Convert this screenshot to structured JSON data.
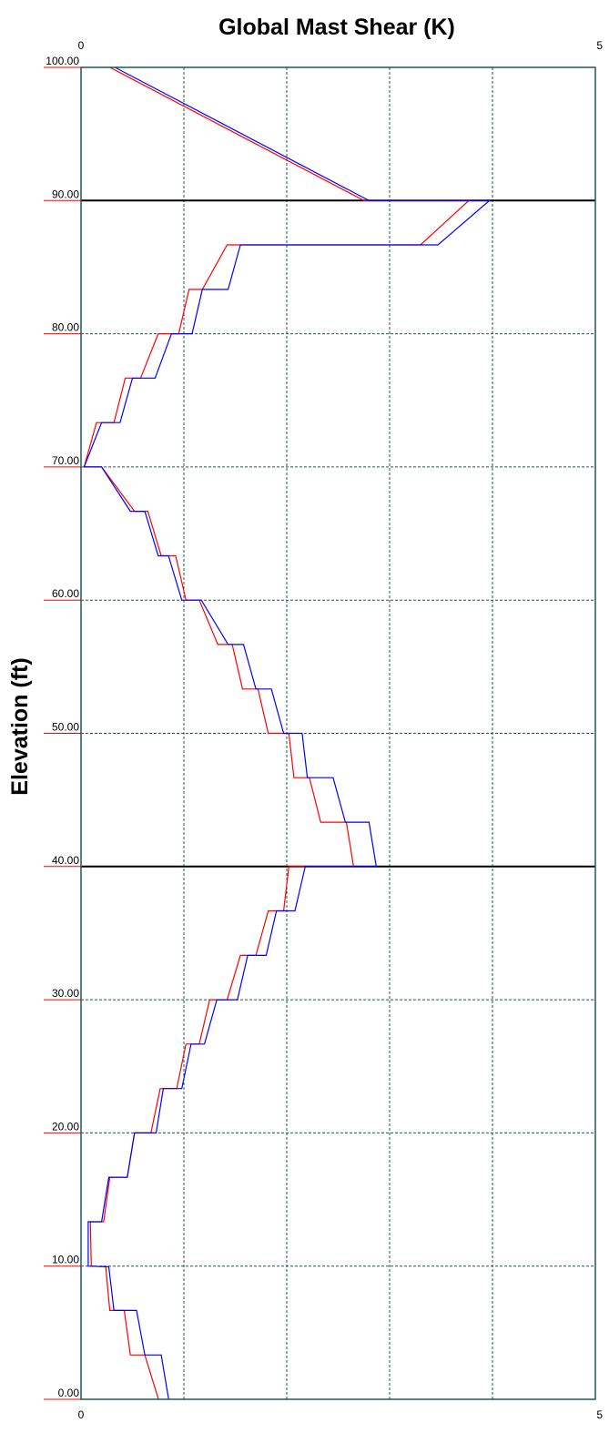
{
  "colors": {
    "frame": "#1f5a52",
    "grid": "#1f5a52",
    "series_red": "#ff0000",
    "series_blue": "#0000ff",
    "tick_marker": "#ff0000"
  },
  "chart_data": {
    "type": "line",
    "title": "Global Mast Shear (K)",
    "ylabel": "Elevation (ft)",
    "xlabel": "",
    "xlim": [
      0,
      5
    ],
    "ylim": [
      0,
      100
    ],
    "x_tick_labels": [
      "0",
      "5"
    ],
    "y_ticks": [
      0,
      10,
      20,
      30,
      40,
      50,
      60,
      70,
      80,
      90,
      100
    ],
    "y_tick_labels": [
      "0.00",
      "10.00",
      "20.00",
      "30.00",
      "40.00",
      "50.00",
      "60.00",
      "70.00",
      "80.00",
      "90.00",
      "100.00"
    ],
    "x_grid": [
      1,
      2,
      3,
      4
    ],
    "emphasized_y_lines": [
      40,
      90
    ],
    "grid": true,
    "series": [
      {
        "color": "red",
        "points": [
          [
            0.75,
            0
          ],
          [
            0.75,
            0.07
          ],
          [
            0.62,
            3.33
          ],
          [
            0.48,
            3.33
          ],
          [
            0.42,
            6.67
          ],
          [
            0.28,
            6.67
          ],
          [
            0.24,
            9.95
          ],
          [
            0.1,
            10.0
          ],
          [
            0.09,
            13.33
          ],
          [
            0.22,
            13.33
          ],
          [
            0.28,
            16.67
          ],
          [
            0.45,
            16.67
          ],
          [
            0.52,
            20.0
          ],
          [
            0.68,
            20.0
          ],
          [
            0.77,
            23.33
          ],
          [
            0.93,
            23.33
          ],
          [
            1.02,
            26.67
          ],
          [
            1.15,
            26.67
          ],
          [
            1.25,
            30.0
          ],
          [
            1.42,
            30.0
          ],
          [
            1.55,
            33.33
          ],
          [
            1.7,
            33.33
          ],
          [
            1.82,
            36.67
          ],
          [
            1.97,
            36.67
          ],
          [
            2.02,
            40.0
          ],
          [
            2.65,
            40.0
          ],
          [
            2.58,
            43.33
          ],
          [
            2.33,
            43.33
          ],
          [
            2.22,
            46.67
          ],
          [
            2.07,
            46.67
          ],
          [
            2.02,
            50.0
          ],
          [
            1.82,
            50.0
          ],
          [
            1.72,
            53.33
          ],
          [
            1.57,
            53.33
          ],
          [
            1.47,
            56.67
          ],
          [
            1.33,
            56.67
          ],
          [
            1.15,
            60.0
          ],
          [
            1.02,
            60.0
          ],
          [
            0.92,
            63.33
          ],
          [
            0.78,
            63.33
          ],
          [
            0.65,
            66.67
          ],
          [
            0.52,
            66.67
          ],
          [
            0.2,
            70.0
          ],
          [
            0.03,
            70.0
          ],
          [
            0.15,
            73.33
          ],
          [
            0.32,
            73.33
          ],
          [
            0.43,
            76.67
          ],
          [
            0.58,
            76.67
          ],
          [
            0.75,
            80.0
          ],
          [
            0.95,
            80.0
          ],
          [
            1.05,
            83.33
          ],
          [
            1.18,
            83.33
          ],
          [
            1.42,
            86.67
          ],
          [
            3.3,
            86.67
          ],
          [
            3.77,
            90.0
          ],
          [
            2.75,
            90.0
          ],
          [
            0.28,
            100.0
          ]
        ]
      },
      {
        "color": "blue",
        "points": [
          [
            0.85,
            0
          ],
          [
            0.85,
            0.07
          ],
          [
            0.78,
            3.33
          ],
          [
            0.62,
            3.33
          ],
          [
            0.54,
            6.67
          ],
          [
            0.32,
            6.67
          ],
          [
            0.27,
            9.95
          ],
          [
            0.07,
            10.0
          ],
          [
            0.07,
            13.33
          ],
          [
            0.2,
            13.33
          ],
          [
            0.27,
            16.67
          ],
          [
            0.45,
            16.67
          ],
          [
            0.52,
            20.0
          ],
          [
            0.73,
            20.0
          ],
          [
            0.8,
            23.33
          ],
          [
            0.98,
            23.33
          ],
          [
            1.07,
            26.67
          ],
          [
            1.2,
            26.67
          ],
          [
            1.32,
            30.0
          ],
          [
            1.52,
            30.0
          ],
          [
            1.62,
            33.33
          ],
          [
            1.8,
            33.33
          ],
          [
            1.9,
            36.67
          ],
          [
            2.08,
            36.67
          ],
          [
            2.18,
            40.0
          ],
          [
            2.87,
            40.0
          ],
          [
            2.8,
            43.33
          ],
          [
            2.57,
            43.33
          ],
          [
            2.45,
            46.67
          ],
          [
            2.2,
            46.67
          ],
          [
            2.15,
            50.0
          ],
          [
            1.97,
            50.0
          ],
          [
            1.85,
            53.33
          ],
          [
            1.7,
            53.33
          ],
          [
            1.58,
            56.67
          ],
          [
            1.43,
            56.67
          ],
          [
            1.17,
            60.0
          ],
          [
            0.98,
            60.0
          ],
          [
            0.85,
            63.33
          ],
          [
            0.75,
            63.33
          ],
          [
            0.62,
            66.67
          ],
          [
            0.48,
            66.67
          ],
          [
            0.2,
            70.0
          ],
          [
            0.03,
            70.0
          ],
          [
            0.2,
            73.33
          ],
          [
            0.38,
            73.33
          ],
          [
            0.5,
            76.67
          ],
          [
            0.72,
            76.67
          ],
          [
            0.88,
            80.0
          ],
          [
            1.08,
            80.0
          ],
          [
            1.18,
            83.33
          ],
          [
            1.43,
            83.33
          ],
          [
            1.55,
            86.67
          ],
          [
            3.47,
            86.67
          ],
          [
            3.97,
            90.0
          ],
          [
            2.8,
            90.0
          ],
          [
            0.33,
            100.0
          ]
        ]
      }
    ]
  }
}
